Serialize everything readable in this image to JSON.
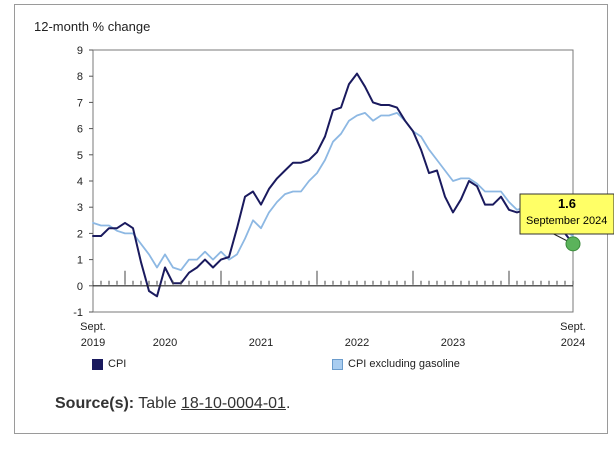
{
  "chart_data": {
    "type": "line",
    "ylabel": "12-month % change",
    "ylim": [
      -1,
      9
    ],
    "yticks": [
      -1,
      0,
      1,
      2,
      3,
      4,
      5,
      6,
      7,
      8,
      9
    ],
    "x_start": "2019-09",
    "x_end": "2024-09",
    "xtick_labels": [
      {
        "month": "2019-09",
        "line1": "Sept.",
        "line2": "2019"
      },
      {
        "month": "2020-06",
        "line1": "",
        "line2": "2020"
      },
      {
        "month": "2021-06",
        "line1": "",
        "line2": "2021"
      },
      {
        "month": "2022-06",
        "line1": "",
        "line2": "2022"
      },
      {
        "month": "2023-06",
        "line1": "",
        "line2": "2023"
      },
      {
        "month": "2024-09",
        "line1": "Sept.",
        "line2": "2024"
      }
    ],
    "series": [
      {
        "name": "CPI",
        "color": "#1a1a5e",
        "values": [
          1.9,
          1.9,
          2.2,
          2.2,
          2.4,
          2.2,
          0.9,
          -0.2,
          -0.4,
          0.7,
          0.1,
          0.1,
          0.5,
          0.7,
          1.0,
          0.7,
          1.0,
          1.1,
          2.2,
          3.4,
          3.6,
          3.1,
          3.7,
          4.1,
          4.4,
          4.7,
          4.7,
          4.8,
          5.1,
          5.7,
          6.7,
          6.8,
          7.7,
          8.1,
          7.6,
          7.0,
          6.9,
          6.9,
          6.8,
          6.3,
          5.9,
          5.2,
          4.3,
          4.4,
          3.4,
          2.8,
          3.3,
          4.0,
          3.8,
          3.1,
          3.1,
          3.4,
          2.9,
          2.8,
          2.9,
          2.7,
          2.9,
          2.7,
          2.5,
          2.0,
          1.6
        ]
      },
      {
        "name": "CPI excluding gasoline",
        "color": "#8db8e3",
        "values": [
          2.4,
          2.3,
          2.3,
          2.1,
          2.0,
          2.0,
          1.6,
          1.2,
          0.7,
          1.2,
          0.7,
          0.6,
          1.0,
          1.0,
          1.3,
          1.0,
          1.3,
          1.0,
          1.2,
          1.8,
          2.5,
          2.2,
          2.8,
          3.2,
          3.5,
          3.6,
          3.6,
          4.0,
          4.3,
          4.8,
          5.5,
          5.8,
          6.3,
          6.5,
          6.6,
          6.3,
          6.5,
          6.5,
          6.6,
          6.3,
          5.9,
          5.7,
          5.2,
          4.8,
          4.4,
          4.0,
          4.1,
          4.1,
          3.9,
          3.6,
          3.6,
          3.6,
          3.2,
          2.9,
          3.0,
          2.8,
          2.8,
          2.6,
          2.4,
          2.1,
          1.9
        ]
      }
    ],
    "callout": {
      "value": "1.6",
      "label": "September 2024"
    }
  },
  "legend": {
    "cpi": "CPI",
    "cpi_ex_gas": "CPI excluding gasoline"
  },
  "source": {
    "label": "Source(s):",
    "text": "Table",
    "link": "18-10-0004-01",
    "end": "."
  }
}
